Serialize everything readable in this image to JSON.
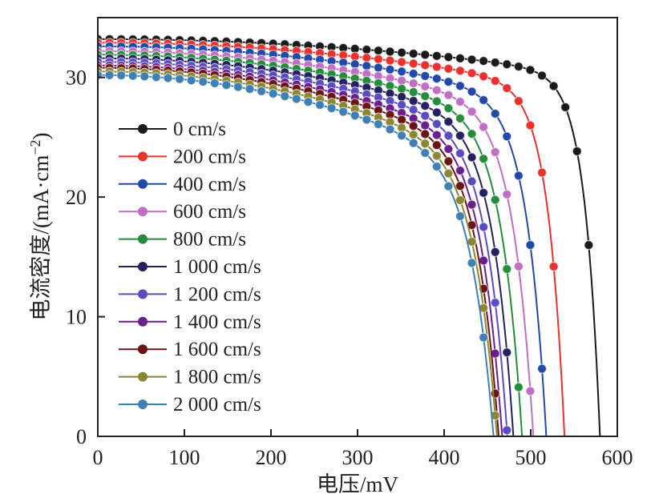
{
  "chart_data": {
    "type": "line",
    "xlabel": "电压/mV",
    "ylabel": "电流密度/(mA·cm",
    "ylabel_sup": "−2",
    "ylabel_close": ")",
    "xlim": [
      0,
      600
    ],
    "ylim": [
      0,
      35
    ],
    "xticks": [
      0,
      100,
      200,
      300,
      400,
      500,
      600
    ],
    "yticks": [
      0,
      10,
      20,
      30
    ],
    "grid": false,
    "legend": "center-left",
    "series": [
      {
        "name": "0 cm/s",
        "color": "#1a1a1a",
        "jsc": 33.2,
        "voc": 580,
        "knee": 535,
        "ss": 0.45
      },
      {
        "name": "200 cm/s",
        "color": "#e8322d",
        "jsc": 32.9,
        "voc": 539,
        "knee": 490,
        "ss": 0.65
      },
      {
        "name": "400 cm/s",
        "color": "#2349a8",
        "jsc": 32.6,
        "voc": 518,
        "knee": 460,
        "ss": 0.85
      },
      {
        "name": "600 cm/s",
        "color": "#c06fc4",
        "jsc": 32.2,
        "voc": 503,
        "knee": 442,
        "ss": 1.0
      },
      {
        "name": "800 cm/s",
        "color": "#258c3b",
        "jsc": 31.9,
        "voc": 490,
        "knee": 428,
        "ss": 1.15
      },
      {
        "name": "1 000 cm/s",
        "color": "#23225e",
        "jsc": 31.6,
        "voc": 480,
        "knee": 418,
        "ss": 1.3
      },
      {
        "name": "1 200 cm/s",
        "color": "#5a4bc0",
        "jsc": 31.3,
        "voc": 473,
        "knee": 410,
        "ss": 1.45
      },
      {
        "name": "1 400 cm/s",
        "color": "#6b1f8f",
        "jsc": 31.0,
        "voc": 467,
        "knee": 404,
        "ss": 1.6
      },
      {
        "name": "1 600 cm/s",
        "color": "#6b1414",
        "jsc": 30.8,
        "voc": 463,
        "knee": 399,
        "ss": 1.75
      },
      {
        "name": "1 800 cm/s",
        "color": "#8b8630",
        "jsc": 30.5,
        "voc": 461,
        "knee": 395,
        "ss": 1.9
      },
      {
        "name": "2 000 cm/s",
        "color": "#3f7fb3",
        "jsc": 30.2,
        "voc": 457,
        "knee": 391,
        "ss": 2.05
      }
    ]
  }
}
